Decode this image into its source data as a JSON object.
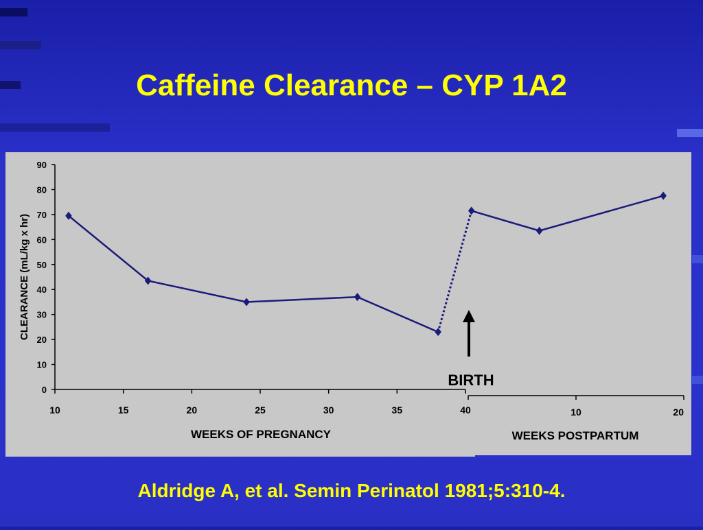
{
  "slide": {
    "title": "Caffeine Clearance – CYP 1A2",
    "citation": "Aldridge A, et al. Semin Perinatol 1981;5:310-4."
  },
  "colors": {
    "background": "#2a30c8",
    "title": "#ffff00",
    "chart_panel": "#c8c8c8",
    "series": "#1a1a7a"
  },
  "chart_data": {
    "type": "line",
    "ylabel": "CLEARANCE (mL/kg x hr)",
    "ylim": [
      0,
      90
    ],
    "yticks": [
      0,
      10,
      20,
      30,
      40,
      50,
      60,
      70,
      80,
      90
    ],
    "pregnancy": {
      "xlabel": "WEEKS OF PREGNANCY",
      "xlim": [
        10,
        40
      ],
      "xticks": [
        10,
        15,
        20,
        25,
        30,
        35,
        40
      ],
      "x": [
        11,
        16.8,
        24,
        32.1,
        38
      ],
      "y": [
        69.5,
        43.5,
        35,
        37,
        23
      ]
    },
    "postpartum": {
      "xlabel": "WEEKS POSTPARTUM",
      "xlim": [
        0,
        20
      ],
      "xticks": [
        10,
        20
      ],
      "x": [
        0.3,
        6.6,
        18.1
      ],
      "y": [
        71.5,
        63.5,
        77.5
      ]
    },
    "annotation": {
      "label": "BIRTH"
    },
    "grid": false,
    "legend": "none"
  }
}
